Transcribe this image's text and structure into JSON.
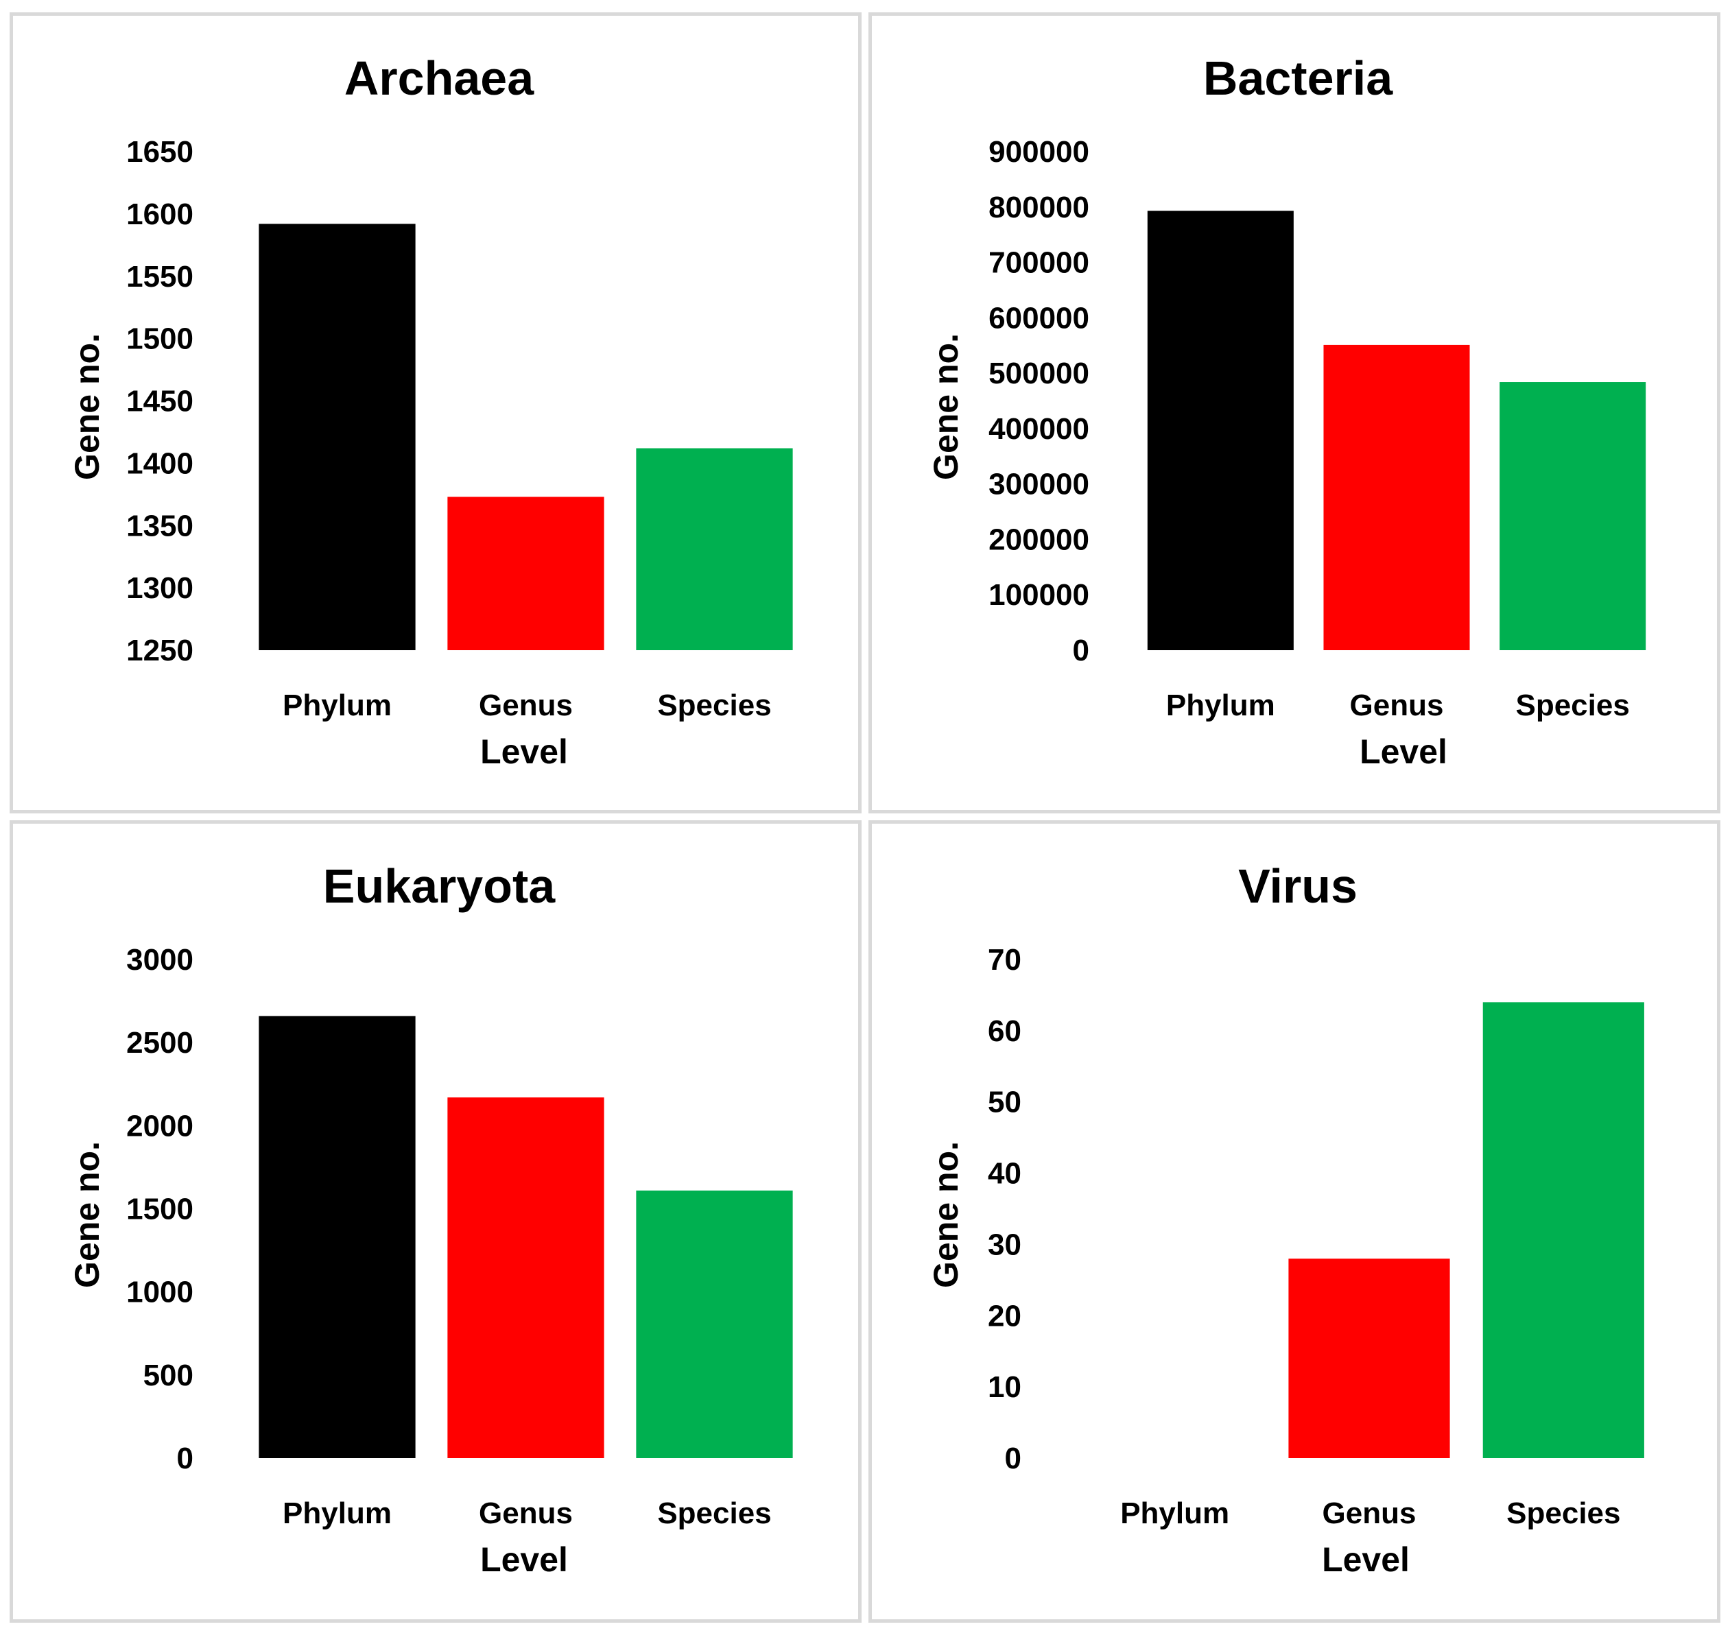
{
  "chart_data": [
    {
      "type": "bar",
      "title": "Archaea",
      "categories": [
        "Phylum",
        "Genus",
        "Species"
      ],
      "values": [
        1592,
        1373,
        1412
      ],
      "xlabel": "Level",
      "ylabel": "Gene no.",
      "ylim": [
        1250,
        1650
      ],
      "yticks": [
        "1250",
        "1300",
        "1350",
        "1400",
        "1450",
        "1500",
        "1550",
        "1600",
        "1650"
      ],
      "colors": [
        "#000000",
        "#ff0000",
        "#00b050"
      ],
      "grid": false
    },
    {
      "type": "bar",
      "title": "Bacteria",
      "categories": [
        "Phylum",
        "Genus",
        "Species"
      ],
      "values": [
        793000,
        551000,
        484000
      ],
      "xlabel": "Level",
      "ylabel": "Gene no.",
      "ylim": [
        0,
        900000
      ],
      "yticks": [
        "0",
        "100000",
        "200000",
        "300000",
        "400000",
        "500000",
        "600000",
        "700000",
        "800000",
        "900000"
      ],
      "colors": [
        "#000000",
        "#ff0000",
        "#00b050"
      ],
      "grid": false
    },
    {
      "type": "bar",
      "title": "Eukaryota",
      "categories": [
        "Phylum",
        "Genus",
        "Species"
      ],
      "values": [
        2660,
        2170,
        1610
      ],
      "xlabel": "Level",
      "ylabel": "Gene no.",
      "ylim": [
        0,
        3000
      ],
      "yticks": [
        "0",
        "500",
        "1000",
        "1500",
        "2000",
        "2500",
        "3000"
      ],
      "colors": [
        "#000000",
        "#ff0000",
        "#00b050"
      ],
      "grid": false
    },
    {
      "type": "bar",
      "title": "Virus",
      "categories": [
        "Phylum",
        "Genus",
        "Species"
      ],
      "values": [
        0,
        28,
        64
      ],
      "xlabel": "Level",
      "ylabel": "Gene no.",
      "ylim": [
        0,
        70
      ],
      "yticks": [
        "0",
        "10",
        "20",
        "30",
        "40",
        "50",
        "60",
        "70"
      ],
      "colors": [
        "#000000",
        "#ff0000",
        "#00b050"
      ],
      "grid": false
    }
  ]
}
